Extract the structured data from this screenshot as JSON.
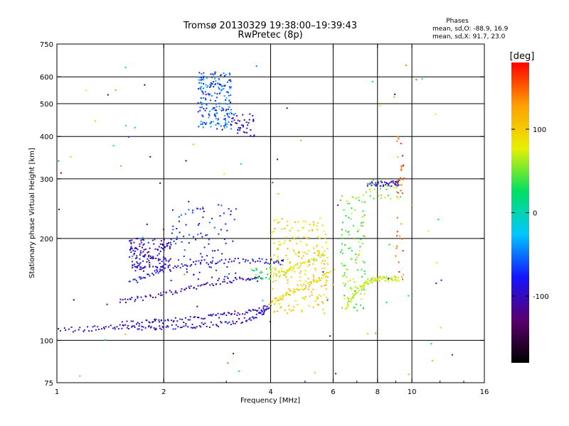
{
  "header": {
    "title_line1": "Tromsø 20130329 19:38:00–19:39:43",
    "title_line2": "RwPretec (8p)",
    "stats_title": "Phases",
    "stats_o": "mean, sd,O: -88.9, 16.9",
    "stats_x": "mean, sd,X:  91.7, 23.0"
  },
  "colorbar": {
    "label": "[deg]",
    "ticks": [
      {
        "value": 100,
        "label": "100"
      },
      {
        "value": 0,
        "label": "0"
      },
      {
        "value": -100,
        "label": "-100"
      }
    ],
    "range": [
      -180,
      180
    ],
    "colors": [
      "#000000",
      "#5a006e",
      "#1414ff",
      "#00c8ff",
      "#00e060",
      "#e8f000",
      "#ffa000",
      "#ff0000"
    ]
  },
  "chart_data": {
    "type": "scatter",
    "title": "Tromsø 20130329 19:38:00–19:39:43",
    "subtitle": "RwPretec (8p)",
    "xlabel": "Frequency [MHz]",
    "ylabel": "Stationary phase Virtual Height [km]",
    "xscale": "log",
    "yscale": "log",
    "xlim": [
      1,
      16
    ],
    "ylim": [
      75,
      750
    ],
    "xticks": [
      {
        "value": 1,
        "label": "1"
      },
      {
        "value": 2,
        "label": "2"
      },
      {
        "value": 4,
        "label": "4"
      },
      {
        "value": 6,
        "label": "6"
      },
      {
        "value": 8,
        "label": "8"
      },
      {
        "value": 10,
        "label": "10"
      },
      {
        "value": 16,
        "label": "16"
      }
    ],
    "x_gridlines": [
      2,
      4,
      6,
      8,
      10
    ],
    "x_minor_ticks": [
      3,
      5,
      7,
      9,
      12,
      14
    ],
    "yticks": [
      {
        "value": 75,
        "label": "75"
      },
      {
        "value": 100,
        "label": "100"
      },
      {
        "value": 200,
        "label": "200"
      },
      {
        "value": 300,
        "label": "300"
      },
      {
        "value": 400,
        "label": "400"
      },
      {
        "value": 500,
        "label": "500"
      },
      {
        "value": 600,
        "label": "600"
      },
      {
        "value": 750,
        "label": "750"
      }
    ],
    "y_gridlines": [
      100,
      200,
      300,
      400,
      500,
      600
    ],
    "grid": true,
    "series": [
      {
        "traces": [
          {
            "x": [
              1.0,
              1.2,
              1.4,
              1.6,
              1.8,
              2.0,
              2.3,
              2.6,
              3.0,
              3.4,
              3.7,
              3.9
            ],
            "y": [
              107,
              108,
              109,
              110,
              109,
              109,
              110,
              111,
              112,
              115,
              119,
              122
            ],
            "phase": -95
          },
          {
            "x": [
              1.5,
              1.8,
              2.0,
              2.3,
              2.7,
              3.0,
              3.4,
              3.8,
              4.0
            ],
            "y": [
              112,
              113,
              114,
              115,
              117,
              119,
              121,
              124,
              127
            ],
            "phase": -100
          },
          {
            "x": [
              1.5,
              1.7,
              2.0,
              2.3,
              2.6,
              3.0,
              3.4,
              3.8
            ],
            "y": [
              130,
              133,
              137,
              141,
              146,
              150,
              152,
              152
            ],
            "phase": -105
          },
          {
            "x": [
              1.6,
              1.8,
              2.0,
              2.3,
              2.6,
              3.0,
              3.5,
              4.0,
              4.4
            ],
            "y": [
              148,
              155,
              162,
              167,
              170,
              172,
              172,
              171,
              170
            ],
            "phase": -90
          },
          {
            "x": [
              4.0,
              4.3,
              4.7,
              5.1,
              5.5,
              5.9
            ],
            "y": [
              128,
              134,
              140,
              146,
              152,
              158
            ],
            "phase": 95
          },
          {
            "x": [
              4.0,
              4.4,
              4.8,
              5.3,
              5.7
            ],
            "y": [
              155,
              160,
              166,
              174,
              182
            ],
            "phase": 80
          },
          {
            "x": [
              6.5,
              6.7,
              7.0,
              7.3,
              7.6,
              7.9,
              8.3,
              8.8,
              9.2
            ],
            "y": [
              125,
              132,
              140,
              145,
              150,
              152,
              152,
              152,
              152
            ],
            "phase": 70
          },
          {
            "x": [
              7.5,
              8.0,
              8.5,
              9.0,
              9.2
            ],
            "y": [
              290,
              290,
              290,
              291,
              291
            ],
            "phase": -90
          }
        ]
      },
      {
        "clusters": [
          {
            "x": [
              1.6,
              2.1
            ],
            "y": [
              160,
              200
            ],
            "phase": -100,
            "count": 160
          },
          {
            "x": [
              2.1,
              3.2
            ],
            "y": [
              150,
              260
            ],
            "phase": -80,
            "count": 90
          },
          {
            "x": [
              2.5,
              3.1
            ],
            "y": [
              420,
              620
            ],
            "phase": -60,
            "count": 200
          },
          {
            "x": [
              3.1,
              3.6
            ],
            "y": [
              400,
              470
            ],
            "phase": -100,
            "count": 40
          },
          {
            "x": [
              4.0,
              5.8
            ],
            "y": [
              120,
              230
            ],
            "phase": 95,
            "count": 220
          },
          {
            "x": [
              3.5,
              4.0
            ],
            "y": [
              150,
              165
            ],
            "phase": 30,
            "count": 25
          },
          {
            "x": [
              6.3,
              7.4
            ],
            "y": [
              120,
              270
            ],
            "phase": 50,
            "count": 110
          },
          {
            "x": [
              7.4,
              9.5
            ],
            "y": [
              260,
              300
            ],
            "phase": 60,
            "count": 30
          },
          {
            "x": [
              9.0,
              9.5
            ],
            "y": [
              150,
              400
            ],
            "phase": 150,
            "count": 40
          },
          {
            "x": [
              1.0,
              13
            ],
            "y": [
              78,
              650
            ],
            "phase": 0,
            "count": 90
          }
        ]
      }
    ]
  }
}
